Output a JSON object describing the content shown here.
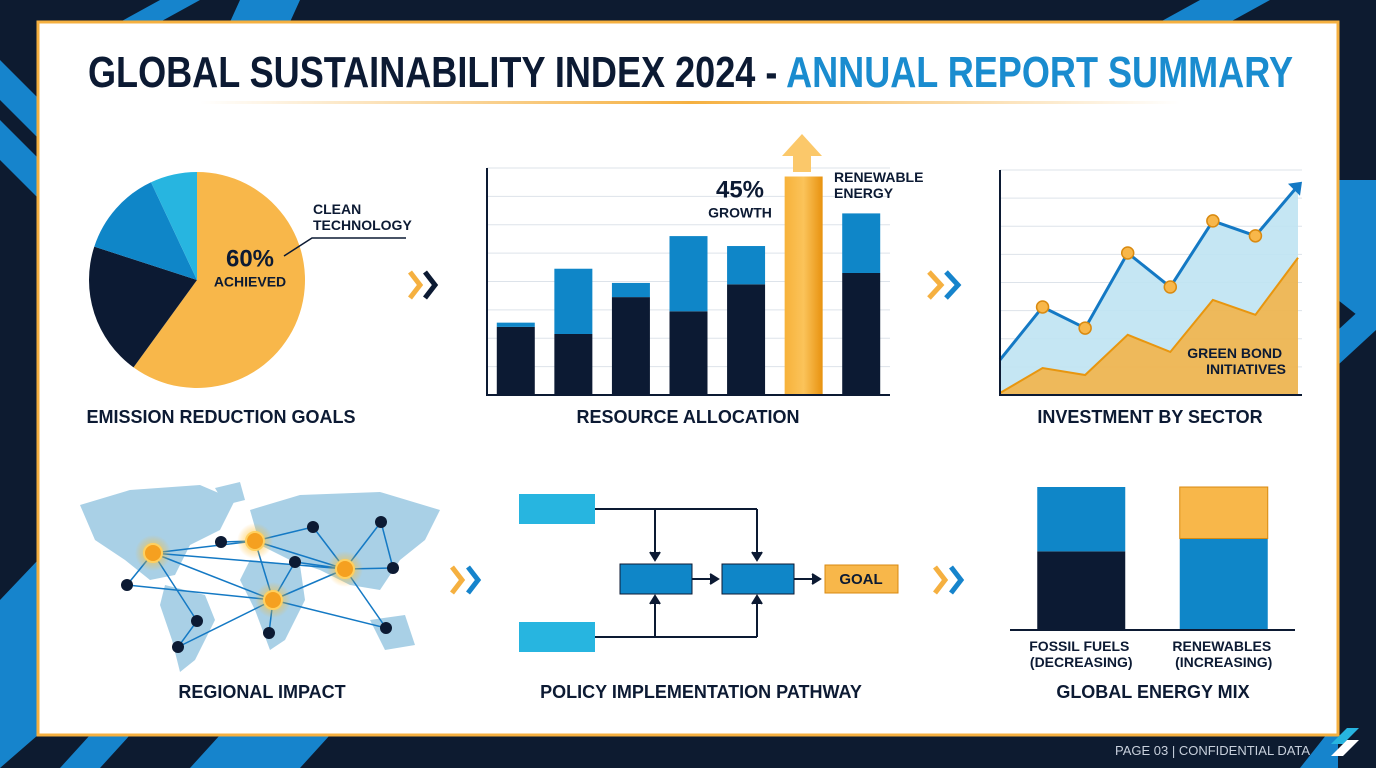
{
  "header": {
    "title": "GLOBAL SUSTAINABILITY INDEX 2024 -",
    "title_accent": "ANNUAL REPORT SUMMARY"
  },
  "chart_data": [
    {
      "type": "pie",
      "title": "EMISSION REDUCTION GOALS",
      "categories": [
        "CLEAN TECHNOLOGY",
        null,
        null,
        null
      ],
      "values": [
        60,
        20,
        13,
        7
      ],
      "value_labels": [
        "60%",
        null,
        null,
        null
      ],
      "colors": [
        "#f8b74a",
        "#0c1a33",
        "#0f86c8",
        "#27b5e0"
      ],
      "annotation": "ACHIEVED"
    },
    {
      "type": "stacked_bar",
      "title": "RESOURCE ALLOCATION",
      "categories": [
        null,
        null,
        null,
        null,
        null,
        null,
        null
      ],
      "series": [
        {
          "color": "#0c1a33",
          "values": [
            2.4,
            2.15,
            3.45,
            2.95,
            3.9,
            null,
            4.3
          ]
        },
        {
          "color": "#0f86c8",
          "values": [
            0.15,
            2.3,
            0.5,
            2.65,
            1.35,
            null,
            2.1
          ]
        },
        {
          "color": "#f5a020",
          "values": [
            null,
            null,
            null,
            null,
            null,
            7.7,
            null
          ]
        }
      ],
      "ylim": [
        0,
        8
      ],
      "yticks": [
        0,
        1,
        2,
        3,
        4,
        5,
        6,
        7,
        8
      ],
      "grid": true,
      "annotations": [
        "45%",
        "GROWTH",
        "RENEWABLE ENERGY"
      ]
    },
    {
      "type": "area",
      "title": "INVESTMENT BY SECTOR",
      "x": [
        0,
        1,
        2,
        3,
        4,
        5,
        6,
        7
      ],
      "xlim": [
        0,
        7
      ],
      "series": [
        {
          "color": "#1479c4",
          "fill": "#bfe3f2",
          "values": [
            1.25,
            3.13,
            2.38,
            5.05,
            3.84,
            6.19,
            5.66,
            7.44
          ]
        },
        {
          "name": "GREEN BOND INITIATIVES",
          "color": "#f5b040",
          "values": [
            0.07,
            0.96,
            0.71,
            2.14,
            1.53,
            3.38,
            2.85,
            4.88
          ]
        }
      ],
      "ylim": [
        0,
        8
      ],
      "yticks": [
        0,
        1,
        2,
        3,
        4,
        5,
        6,
        7,
        8
      ],
      "grid": true
    },
    {
      "type": "stacked_bar",
      "title": "GLOBAL ENERGY MIX",
      "categories": [
        "FOSSIL FUELS (DECREASING)",
        "RENEWABLES (INCREASING)"
      ],
      "series": [
        {
          "color": "#0c1a33",
          "values": [
            55,
            null
          ]
        },
        {
          "color": "#0f86c8",
          "values": [
            45,
            64
          ]
        },
        {
          "color": "#f8b74a",
          "values": [
            null,
            36
          ]
        }
      ],
      "ylim": [
        0,
        100
      ]
    }
  ],
  "diagrams": {
    "regional_impact": {
      "title": "REGIONAL IMPACT"
    },
    "policy_pathway": {
      "title": "POLICY IMPLEMENTATION PATHWAY",
      "goal": "GOAL"
    }
  },
  "footer": {
    "page": "PAGE 03",
    "classification": "CONFIDENTIAL DATA"
  }
}
